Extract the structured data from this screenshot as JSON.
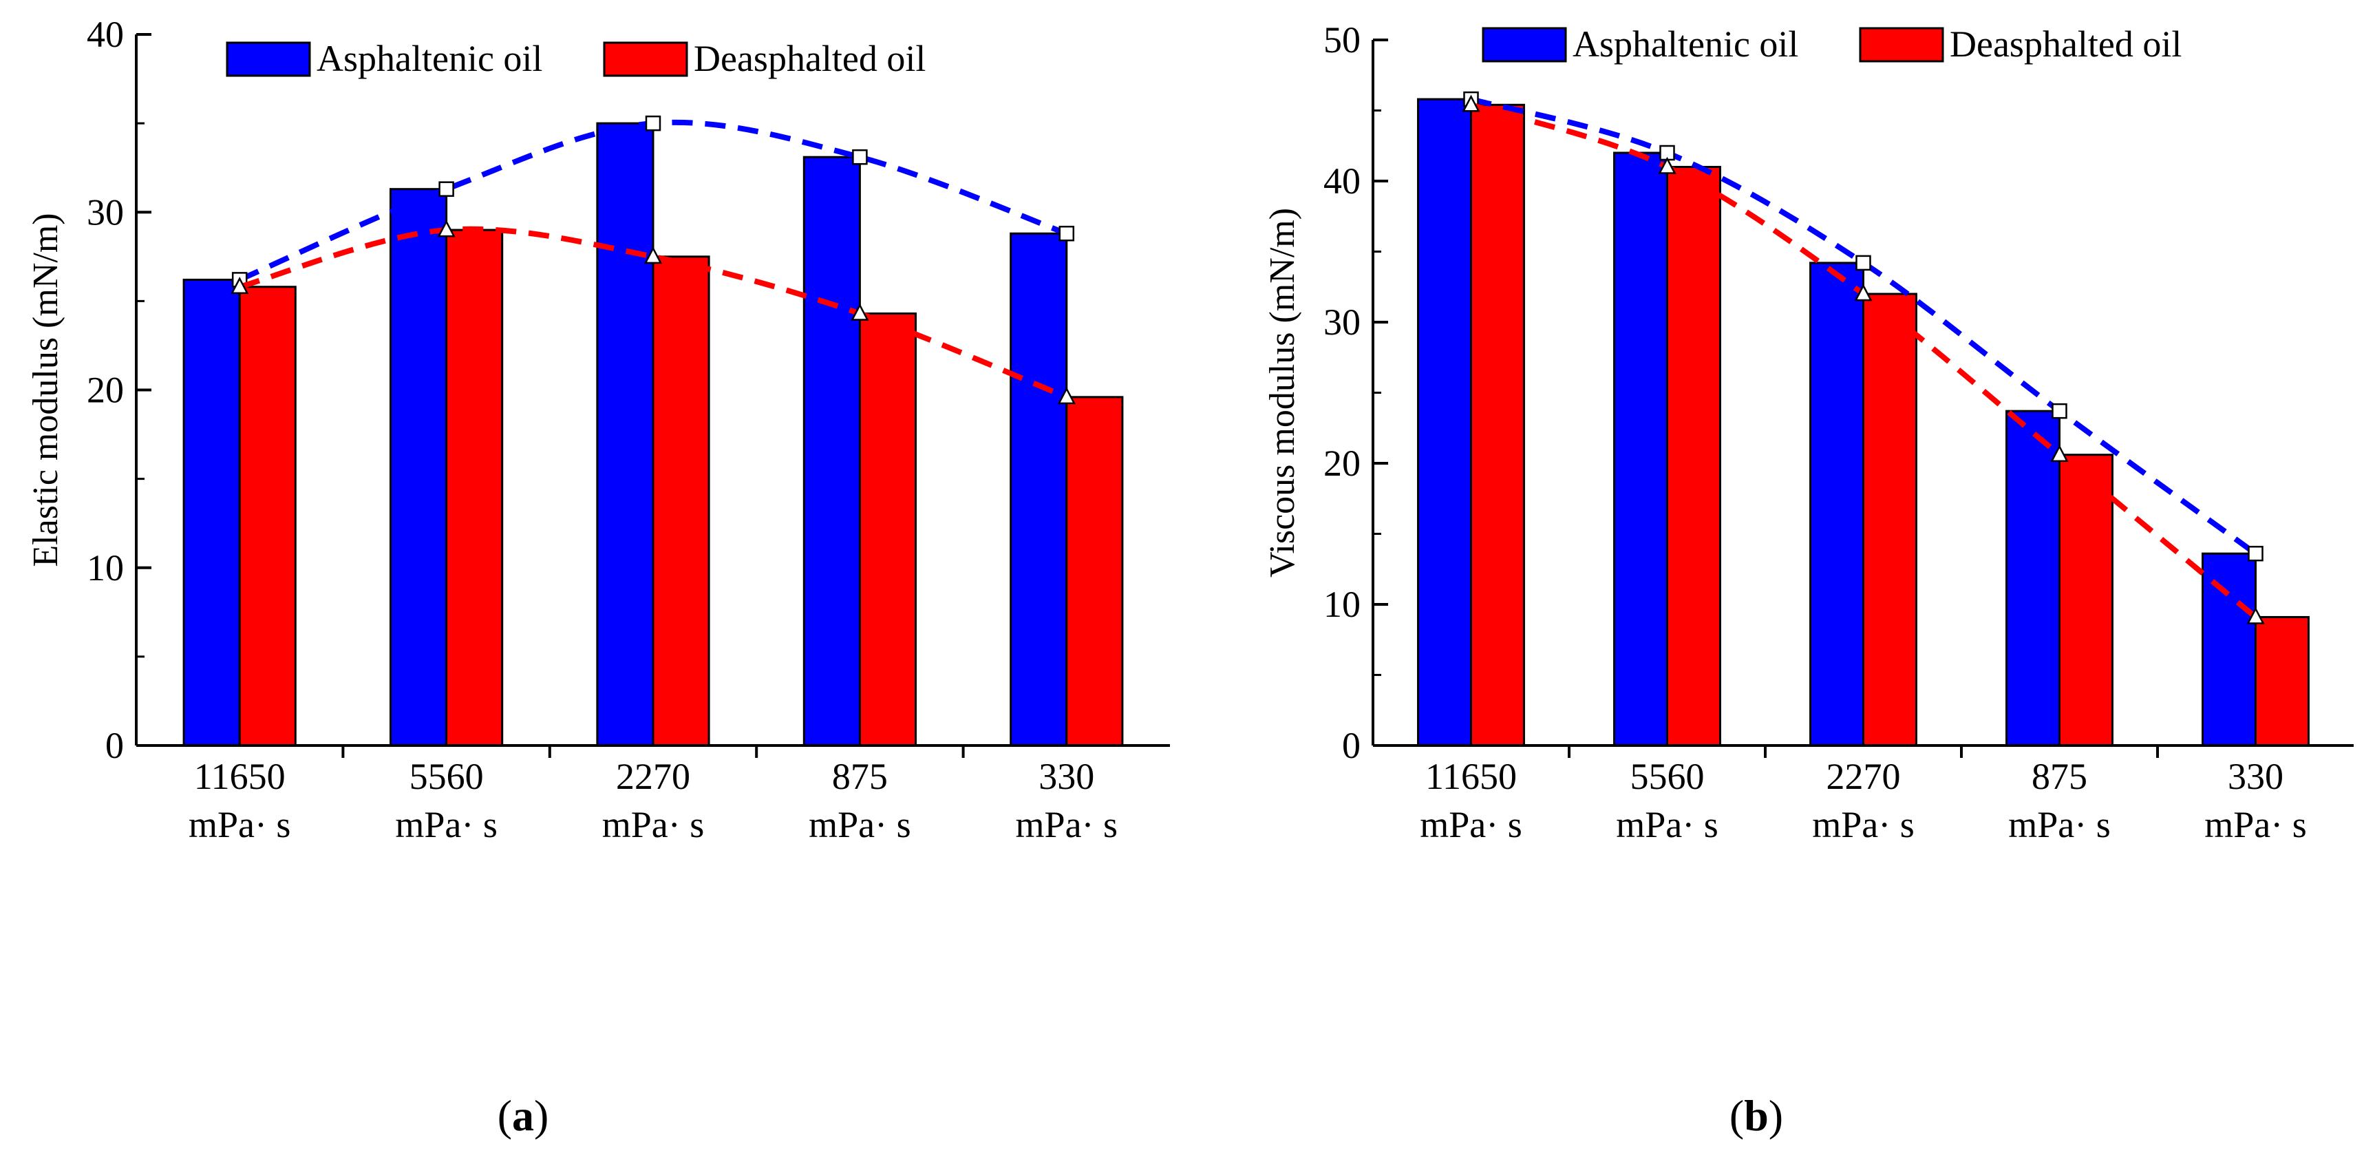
{
  "chart_data": [
    {
      "type": "bar",
      "panel_label": "a",
      "categories": [
        [
          "11650",
          "mPa· s"
        ],
        [
          "5560",
          "mPa· s"
        ],
        [
          "2270",
          "mPa· s"
        ],
        [
          "875",
          "mPa· s"
        ],
        [
          "330",
          "mPa· s"
        ]
      ],
      "series": [
        {
          "name": "Asphaltenic oil",
          "color": "#0000ff",
          "marker": "square",
          "values": [
            26.2,
            31.3,
            35.0,
            33.1,
            28.8
          ]
        },
        {
          "name": "Deasphalted oil",
          "color": "#ff0000",
          "marker": "triangle",
          "values": [
            25.8,
            29.0,
            27.5,
            24.3,
            19.6
          ]
        }
      ],
      "xlabel": "",
      "ylabel": "Elastic modulus (mN/m)",
      "ylim": [
        0,
        40
      ],
      "yticks": [
        0,
        10,
        20,
        30,
        40
      ],
      "grid": false,
      "legend": "top"
    },
    {
      "type": "bar",
      "panel_label": "b",
      "categories": [
        [
          "11650",
          "mPa· s"
        ],
        [
          "5560",
          "mPa· s"
        ],
        [
          "2270",
          "mPa· s"
        ],
        [
          "875",
          "mPa· s"
        ],
        [
          "330",
          "mPa· s"
        ]
      ],
      "series": [
        {
          "name": "Asphaltenic oil",
          "color": "#0000ff",
          "marker": "square",
          "values": [
            45.8,
            42.0,
            34.2,
            23.7,
            13.6
          ]
        },
        {
          "name": "Deasphalted oil",
          "color": "#ff0000",
          "marker": "triangle",
          "values": [
            45.4,
            41.0,
            32.0,
            20.6,
            9.1
          ]
        }
      ],
      "xlabel": "",
      "ylabel": "Viscous modulus (mN/m)",
      "ylim": [
        0,
        50
      ],
      "yticks": [
        0,
        10,
        20,
        30,
        40,
        50
      ],
      "grid": false,
      "legend": "top"
    }
  ]
}
